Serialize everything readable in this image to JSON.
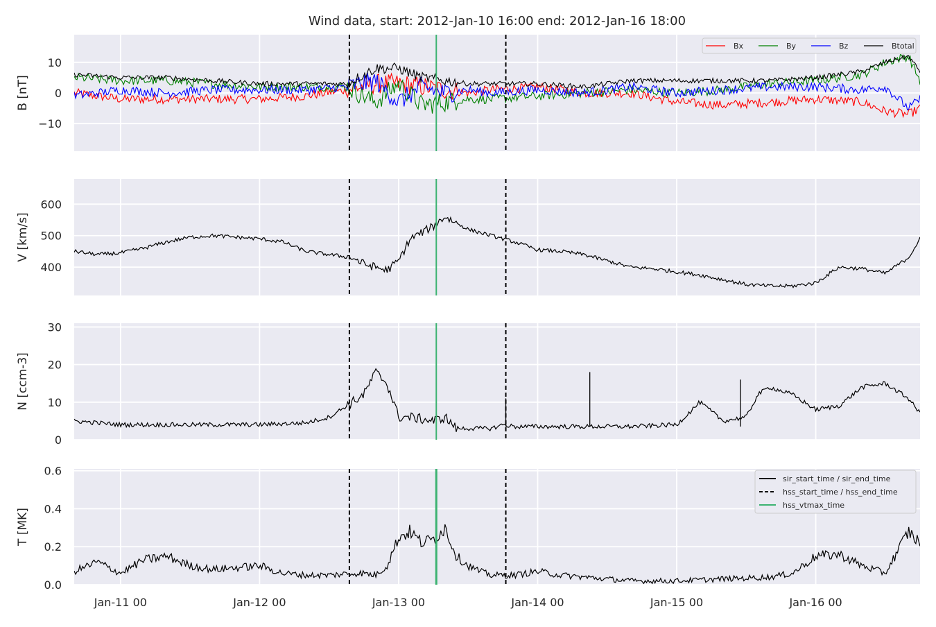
{
  "title": "Wind data, start: 2012-Jan-10 16:00  end: 2012-Jan-16 18:00",
  "x_axis": {
    "start": "2012-01-10T16:00",
    "end": "2012-01-16T18:00",
    "tick_labels": [
      "Jan-11 00",
      "Jan-12 00",
      "Jan-13 00",
      "Jan-14 00",
      "Jan-15 00",
      "Jan-16 00"
    ],
    "tick_times": [
      "2012-01-11T00:00",
      "2012-01-12T00:00",
      "2012-01-13T00:00",
      "2012-01-14T00:00",
      "2012-01-15T00:00",
      "2012-01-16T00:00"
    ]
  },
  "colors": {
    "background": "#eaeaf2",
    "grid": "#ffffff",
    "Bx": "#ff0000",
    "By": "#008000",
    "Bz": "#0000ff",
    "Btotal": "#000000",
    "hss_vtmax": "#3cb371",
    "line": "#000000"
  },
  "event_markers": [
    {
      "label": "hss_start_time / hss_end_time",
      "style": "dashed",
      "times": [
        "2012-01-12T15:30",
        "2012-01-13T18:30"
      ]
    },
    {
      "label": "hss_vtmax_time",
      "style": "solid-green",
      "times": [
        "2012-01-13T06:30"
      ]
    }
  ],
  "legend_B": {
    "placement": "top-right",
    "entries": [
      {
        "label": "Bx",
        "color": "#ff0000"
      },
      {
        "label": "By",
        "color": "#008000"
      },
      {
        "label": "Bz",
        "color": "#0000ff"
      },
      {
        "label": "Btotal",
        "color": "#000000"
      }
    ]
  },
  "legend_events": {
    "placement": "top-right",
    "entries": [
      {
        "label": "sir_start_time / sir_end_time",
        "style": "solid",
        "color": "#000000"
      },
      {
        "label": "hss_start_time / hss_end_time",
        "style": "dashed",
        "color": "#000000"
      },
      {
        "label": "hss_vtmax_time",
        "style": "solid",
        "color": "#3cb371"
      }
    ]
  },
  "chart_data": [
    {
      "type": "line",
      "ylabel": "B [nT]",
      "ylim": [
        -19,
        19
      ],
      "yticks": [
        -10,
        0,
        10
      ],
      "grid": true,
      "x_hours_from_start": [
        0,
        8,
        16,
        24,
        32,
        40,
        47,
        52,
        56,
        60,
        64,
        68,
        72,
        80,
        88,
        96,
        104,
        112,
        120,
        128,
        136,
        140,
        144,
        146
      ],
      "series": [
        {
          "name": "Bx",
          "color": "#ff0000",
          "values": [
            0,
            -2,
            -2,
            -2,
            -2,
            -1,
            1,
            3,
            3,
            2,
            1,
            0,
            1,
            2,
            0,
            0,
            -3,
            -4,
            -3,
            -2,
            -3,
            -6,
            -7,
            -5
          ]
        },
        {
          "name": "By",
          "color": "#008000",
          "values": [
            5,
            4,
            4,
            3,
            2,
            2,
            2,
            -3,
            3,
            -4,
            -3,
            -2,
            -2,
            -1,
            0,
            1,
            0,
            1,
            3,
            4,
            6,
            10,
            12,
            4
          ]
        },
        {
          "name": "Bz",
          "color": "#0000ff",
          "values": [
            -1,
            1,
            0,
            1,
            1,
            1,
            2,
            4,
            -3,
            2,
            0,
            1,
            0,
            1,
            0,
            2,
            0,
            1,
            2,
            2,
            1,
            2,
            -5,
            -2
          ]
        },
        {
          "name": "Btotal",
          "color": "#000000",
          "values": [
            6,
            5,
            5,
            4,
            3,
            3,
            3,
            8,
            8,
            5,
            4,
            3,
            3,
            3,
            2,
            4,
            4,
            4,
            4,
            5,
            7,
            10,
            12,
            7
          ]
        }
      ]
    },
    {
      "type": "line",
      "ylabel": "V [km/s]",
      "ylim": [
        310,
        680
      ],
      "yticks": [
        400,
        500,
        600
      ],
      "grid": true,
      "x_hours_from_start": [
        0,
        4,
        8,
        12,
        16,
        20,
        24,
        28,
        32,
        36,
        40,
        44,
        48,
        50,
        52,
        54,
        56,
        58,
        60,
        62,
        64,
        68,
        72,
        76,
        80,
        84,
        88,
        92,
        96,
        100,
        104,
        108,
        112,
        116,
        120,
        124,
        128,
        132,
        136,
        140,
        144,
        146
      ],
      "series": [
        {
          "name": "V",
          "color": "#000000",
          "values": [
            450,
            440,
            445,
            460,
            480,
            495,
            500,
            495,
            490,
            480,
            450,
            440,
            430,
            410,
            400,
            390,
            420,
            490,
            510,
            530,
            560,
            520,
            500,
            480,
            455,
            450,
            440,
            420,
            400,
            395,
            385,
            375,
            360,
            345,
            340,
            340,
            350,
            400,
            395,
            380,
            430,
            490
          ]
        }
      ]
    },
    {
      "type": "line",
      "ylabel": "N [ccm-3]",
      "ylim": [
        0,
        31
      ],
      "yticks": [
        0,
        10,
        20,
        30
      ],
      "grid": true,
      "x_hours_from_start": [
        0,
        8,
        16,
        24,
        32,
        40,
        44,
        48,
        50,
        52,
        54,
        56,
        58,
        62,
        64,
        66,
        68,
        72,
        74,
        76,
        80,
        84,
        88,
        96,
        104,
        108,
        112,
        116,
        118,
        120,
        124,
        128,
        132,
        136,
        140,
        144,
        146
      ],
      "series": [
        {
          "name": "N",
          "color": "#000000",
          "values": [
            5,
            4,
            4,
            4,
            4,
            4.5,
            6,
            10,
            12,
            18,
            15,
            6,
            6,
            5,
            6,
            3,
            3,
            3,
            4,
            3.5,
            3.5,
            3.5,
            3.5,
            3.5,
            4,
            10,
            5,
            6,
            12,
            14,
            12,
            8,
            9,
            14,
            15,
            11,
            7
          ]
        }
      ],
      "spikes": [
        {
          "x_hours_from_start": 74.5,
          "value": 11
        },
        {
          "x_hours_from_start": 89,
          "value": 18
        },
        {
          "x_hours_from_start": 115,
          "value": 16
        }
      ]
    },
    {
      "type": "line",
      "ylabel": "T [MK]",
      "ylim": [
        0,
        0.61
      ],
      "yticks": [
        0.0,
        0.2,
        0.4,
        0.6
      ],
      "grid": true,
      "x_hours_from_start": [
        0,
        4,
        8,
        12,
        16,
        20,
        24,
        28,
        32,
        36,
        40,
        44,
        48,
        50,
        52,
        54,
        56,
        58,
        60,
        62,
        64,
        66,
        68,
        70,
        72,
        76,
        80,
        84,
        88,
        92,
        96,
        104,
        112,
        120,
        124,
        128,
        132,
        136,
        140,
        144,
        146
      ],
      "series": [
        {
          "name": "T",
          "color": "#000000",
          "values": [
            0.07,
            0.12,
            0.06,
            0.13,
            0.15,
            0.1,
            0.08,
            0.09,
            0.1,
            0.06,
            0.05,
            0.05,
            0.06,
            0.06,
            0.05,
            0.1,
            0.25,
            0.28,
            0.22,
            0.24,
            0.3,
            0.15,
            0.1,
            0.07,
            0.05,
            0.05,
            0.07,
            0.05,
            0.04,
            0.03,
            0.02,
            0.02,
            0.03,
            0.04,
            0.06,
            0.15,
            0.16,
            0.1,
            0.06,
            0.28,
            0.22
          ]
        }
      ]
    }
  ]
}
